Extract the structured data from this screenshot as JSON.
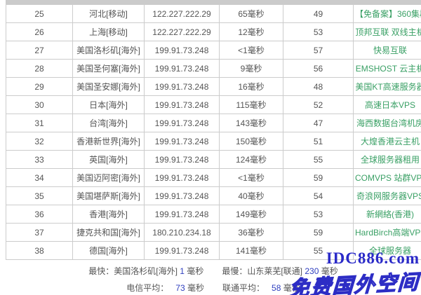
{
  "accent_colors": {
    "ip_green": "#4f9e78",
    "sponsor_green": "#3aa065",
    "summary_blue": "#2f3fbf",
    "watermark_blue": "#2a2ac8",
    "border_gray": "#cccccc"
  },
  "table": {
    "rows": [
      {
        "id": "25",
        "location": "河北[移动]",
        "ip": "122.227.222.29",
        "time": "65毫秒",
        "value": "49",
        "sponsor": "【免备案】360集群"
      },
      {
        "id": "26",
        "location": "上海[移动]",
        "ip": "122.227.222.29",
        "time": "12毫秒",
        "value": "53",
        "sponsor": "顶邦互联 双线主机"
      },
      {
        "id": "27",
        "location": "美国洛杉矶[海外]",
        "ip": "199.91.73.248",
        "time": "<1毫秒",
        "value": "57",
        "sponsor": "快易互联"
      },
      {
        "id": "28",
        "location": "美国圣何塞[海外]",
        "ip": "199.91.73.248",
        "time": "9毫秒",
        "value": "56",
        "sponsor": "EMSHOST 云主机"
      },
      {
        "id": "29",
        "location": "美国圣安娜[海外]",
        "ip": "199.91.73.248",
        "time": "16毫秒",
        "value": "48",
        "sponsor": "美国KT高速服务器"
      },
      {
        "id": "30",
        "location": "日本[海外]",
        "ip": "199.91.73.248",
        "time": "115毫秒",
        "value": "52",
        "sponsor": "高速日本VPS"
      },
      {
        "id": "31",
        "location": "台湾[海外]",
        "ip": "199.91.73.248",
        "time": "143毫秒",
        "value": "47",
        "sponsor": "海西数据台湾机房"
      },
      {
        "id": "32",
        "location": "香港新世界[海外]",
        "ip": "199.91.73.248",
        "time": "150毫秒",
        "value": "51",
        "sponsor": "大煌香港云主机"
      },
      {
        "id": "33",
        "location": "英国[海外]",
        "ip": "199.91.73.248",
        "time": "124毫秒",
        "value": "55",
        "sponsor": "全球服务器租用"
      },
      {
        "id": "34",
        "location": "美国迈阿密[海外]",
        "ip": "199.91.73.248",
        "time": "<1毫秒",
        "value": "59",
        "sponsor": "COMVPS 站群VPS"
      },
      {
        "id": "35",
        "location": "美国堪萨斯[海外]",
        "ip": "199.91.73.248",
        "time": "40毫秒",
        "value": "54",
        "sponsor": "奇浪网服务器VPS"
      },
      {
        "id": "36",
        "location": "香港[海外]",
        "ip": "199.91.73.248",
        "time": "149毫秒",
        "value": "53",
        "sponsor": "新網絡(香港)"
      },
      {
        "id": "37",
        "location": "捷克共和国[海外]",
        "ip": "180.210.234.18",
        "time": "36毫秒",
        "value": "59",
        "sponsor": "HardBirch高端VPS"
      },
      {
        "id": "38",
        "location": "德国[海外]",
        "ip": "199.91.73.248",
        "time": "141毫秒",
        "value": "55",
        "sponsor": "全球服务器"
      }
    ]
  },
  "summary": {
    "fastest_label": "最快：",
    "fastest_location": "美国洛杉矶[海外]",
    "fastest_value": "1",
    "slowest_label": "最慢：",
    "slowest_location": "山东莱芜[联通]",
    "slowest_value": "230",
    "unit": "毫秒",
    "telecom_label": "电信平均：",
    "telecom_value": "73",
    "unicom_label": "联通平均：",
    "unicom_value": "58"
  },
  "watermark": {
    "domain": "IDC886.com",
    "slogan": "免费国外空间"
  }
}
